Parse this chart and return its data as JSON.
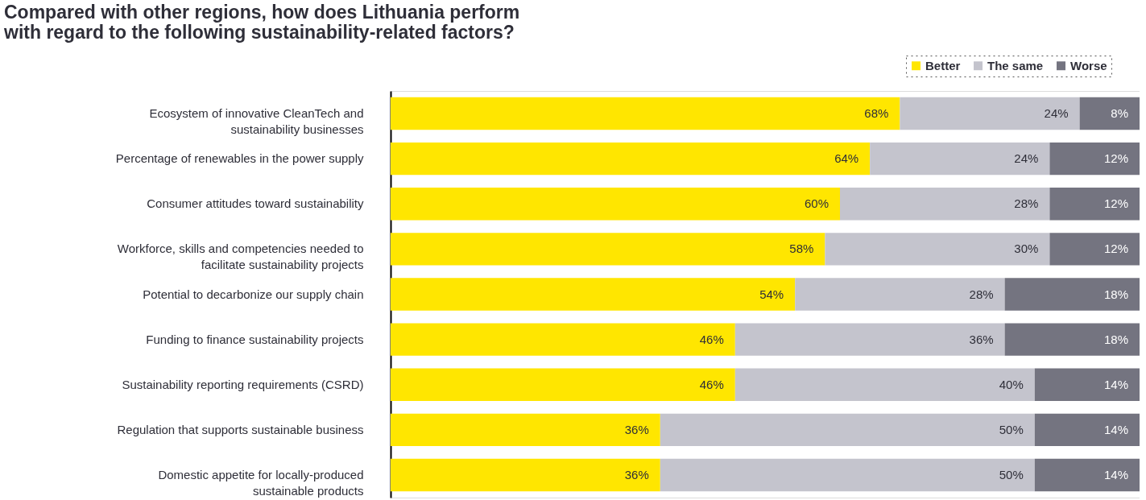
{
  "chart_data": {
    "type": "bar",
    "orientation": "horizontal",
    "stacked": true,
    "title": "Compared with other regions, how does Lithuania perform\nwith regard to the following sustainability-related factors?",
    "categories": [
      "Ecosystem of innovative CleanTech and\nsustainability businesses",
      "Percentage of renewables in the power supply",
      "Consumer attitudes toward sustainability",
      "Workforce, skills and competencies needed to\nfacilitate sustainability projects",
      "Potential to decarbonize our supply chain",
      "Funding to finance sustainability projects",
      "Sustainability reporting requirements (CSRD)",
      "Regulation that supports sustainable business",
      "Domestic appetite for locally-produced\nsustainable products"
    ],
    "series": [
      {
        "name": "Better",
        "color": "#ffe600",
        "values": [
          68,
          64,
          60,
          58,
          54,
          46,
          46,
          36,
          36
        ],
        "value_labels": [
          "68%",
          "64%",
          "60%",
          "58%",
          "54%",
          "46%",
          "46%",
          "36%",
          "36%"
        ]
      },
      {
        "name": "The same",
        "color": "#c4c4cd",
        "values": [
          24,
          24,
          28,
          30,
          28,
          36,
          40,
          50,
          50
        ],
        "value_labels": [
          "24%",
          "24%",
          "28%",
          "30%",
          "28%",
          "36%",
          "40%",
          "50%",
          "50%"
        ]
      },
      {
        "name": "Worse",
        "color": "#747480",
        "values": [
          8,
          12,
          12,
          12,
          18,
          18,
          14,
          14,
          14
        ],
        "value_labels": [
          "8%",
          "12%",
          "12%",
          "12%",
          "18%",
          "18%",
          "14%",
          "14%",
          "14%"
        ]
      }
    ],
    "tick_labels": "y",
    "legend": "top right"
  }
}
